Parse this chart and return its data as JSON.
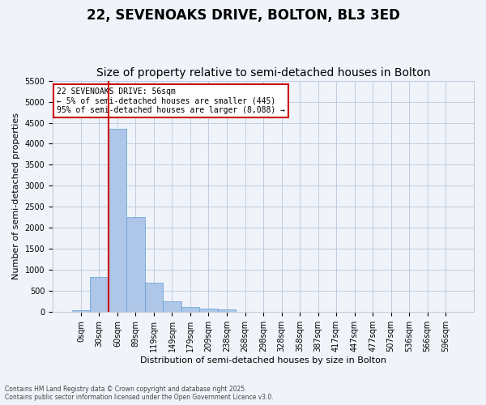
{
  "title": "22, SEVENOAKS DRIVE, BOLTON, BL3 3ED",
  "subtitle": "Size of property relative to semi-detached houses in Bolton",
  "xlabel": "Distribution of semi-detached houses by size in Bolton",
  "ylabel": "Number of semi-detached properties",
  "footer_line1": "Contains HM Land Registry data © Crown copyright and database right 2025.",
  "footer_line2": "Contains public sector information licensed under the Open Government Licence v3.0.",
  "annotation_title": "22 SEVENOAKS DRIVE: 56sqm",
  "annotation_line1": "← 5% of semi-detached houses are smaller (445)",
  "annotation_line2": "95% of semi-detached houses are larger (8,088) →",
  "bar_color": "#aec6e8",
  "bar_edge_color": "#5a9fd4",
  "vline_color": "#cc0000",
  "vline_x": 1.5,
  "ylim": [
    0,
    5500
  ],
  "yticks": [
    0,
    500,
    1000,
    1500,
    2000,
    2500,
    3000,
    3500,
    4000,
    4500,
    5000,
    5500
  ],
  "bin_labels": [
    "0sqm",
    "30sqm",
    "60sqm",
    "89sqm",
    "119sqm",
    "149sqm",
    "179sqm",
    "209sqm",
    "238sqm",
    "268sqm",
    "298sqm",
    "328sqm",
    "358sqm",
    "387sqm",
    "417sqm",
    "447sqm",
    "477sqm",
    "507sqm",
    "536sqm",
    "566sqm",
    "596sqm"
  ],
  "bar_values": [
    50,
    840,
    4350,
    2250,
    690,
    260,
    130,
    80,
    65,
    0,
    0,
    0,
    0,
    0,
    0,
    0,
    0,
    0,
    0,
    0,
    0
  ],
  "background_color": "#f0f4fa",
  "grid_color": "#c0cce0",
  "title_fontsize": 12,
  "subtitle_fontsize": 10,
  "axis_fontsize": 8,
  "tick_fontsize": 7,
  "annotation_box_color": "#ffffff",
  "annotation_box_edgecolor": "#cc0000"
}
